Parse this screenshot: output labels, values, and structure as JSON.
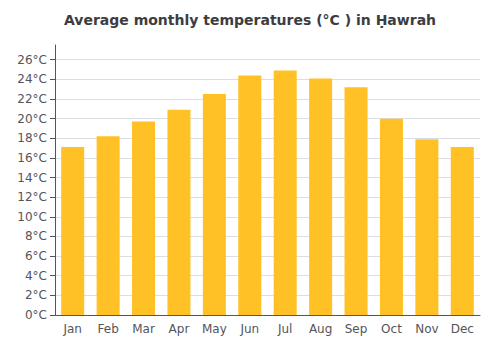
{
  "chart_data": {
    "type": "bar",
    "title": "Average monthly temperatures (°C ) in Ḥawrah",
    "categories": [
      "Jan",
      "Feb",
      "Mar",
      "Apr",
      "May",
      "Jun",
      "Jul",
      "Aug",
      "Sep",
      "Oct",
      "Nov",
      "Dec"
    ],
    "values": [
      17.1,
      18.2,
      19.7,
      20.9,
      22.5,
      24.4,
      24.9,
      24.1,
      23.2,
      20.0,
      17.9,
      17.1
    ],
    "color": "#FFC125",
    "ylim": [
      0,
      27.5
    ],
    "yticks": [
      {
        "value": 0,
        "label": "0°C"
      },
      {
        "value": 2,
        "label": "2°C"
      },
      {
        "value": 4,
        "label": "4°C"
      },
      {
        "value": 6,
        "label": "6°C"
      },
      {
        "value": 8,
        "label": "8°C"
      },
      {
        "value": 10,
        "label": "10°C"
      },
      {
        "value": 12,
        "label": "12°C"
      },
      {
        "value": 14,
        "label": "14°C"
      },
      {
        "value": 16,
        "label": "16°C"
      },
      {
        "value": 18,
        "label": "18°C"
      },
      {
        "value": 20,
        "label": "20°C"
      },
      {
        "value": 22,
        "label": "22°C"
      },
      {
        "value": 24,
        "label": "24°C"
      },
      {
        "value": 26,
        "label": "26°C"
      }
    ],
    "grid": true
  }
}
